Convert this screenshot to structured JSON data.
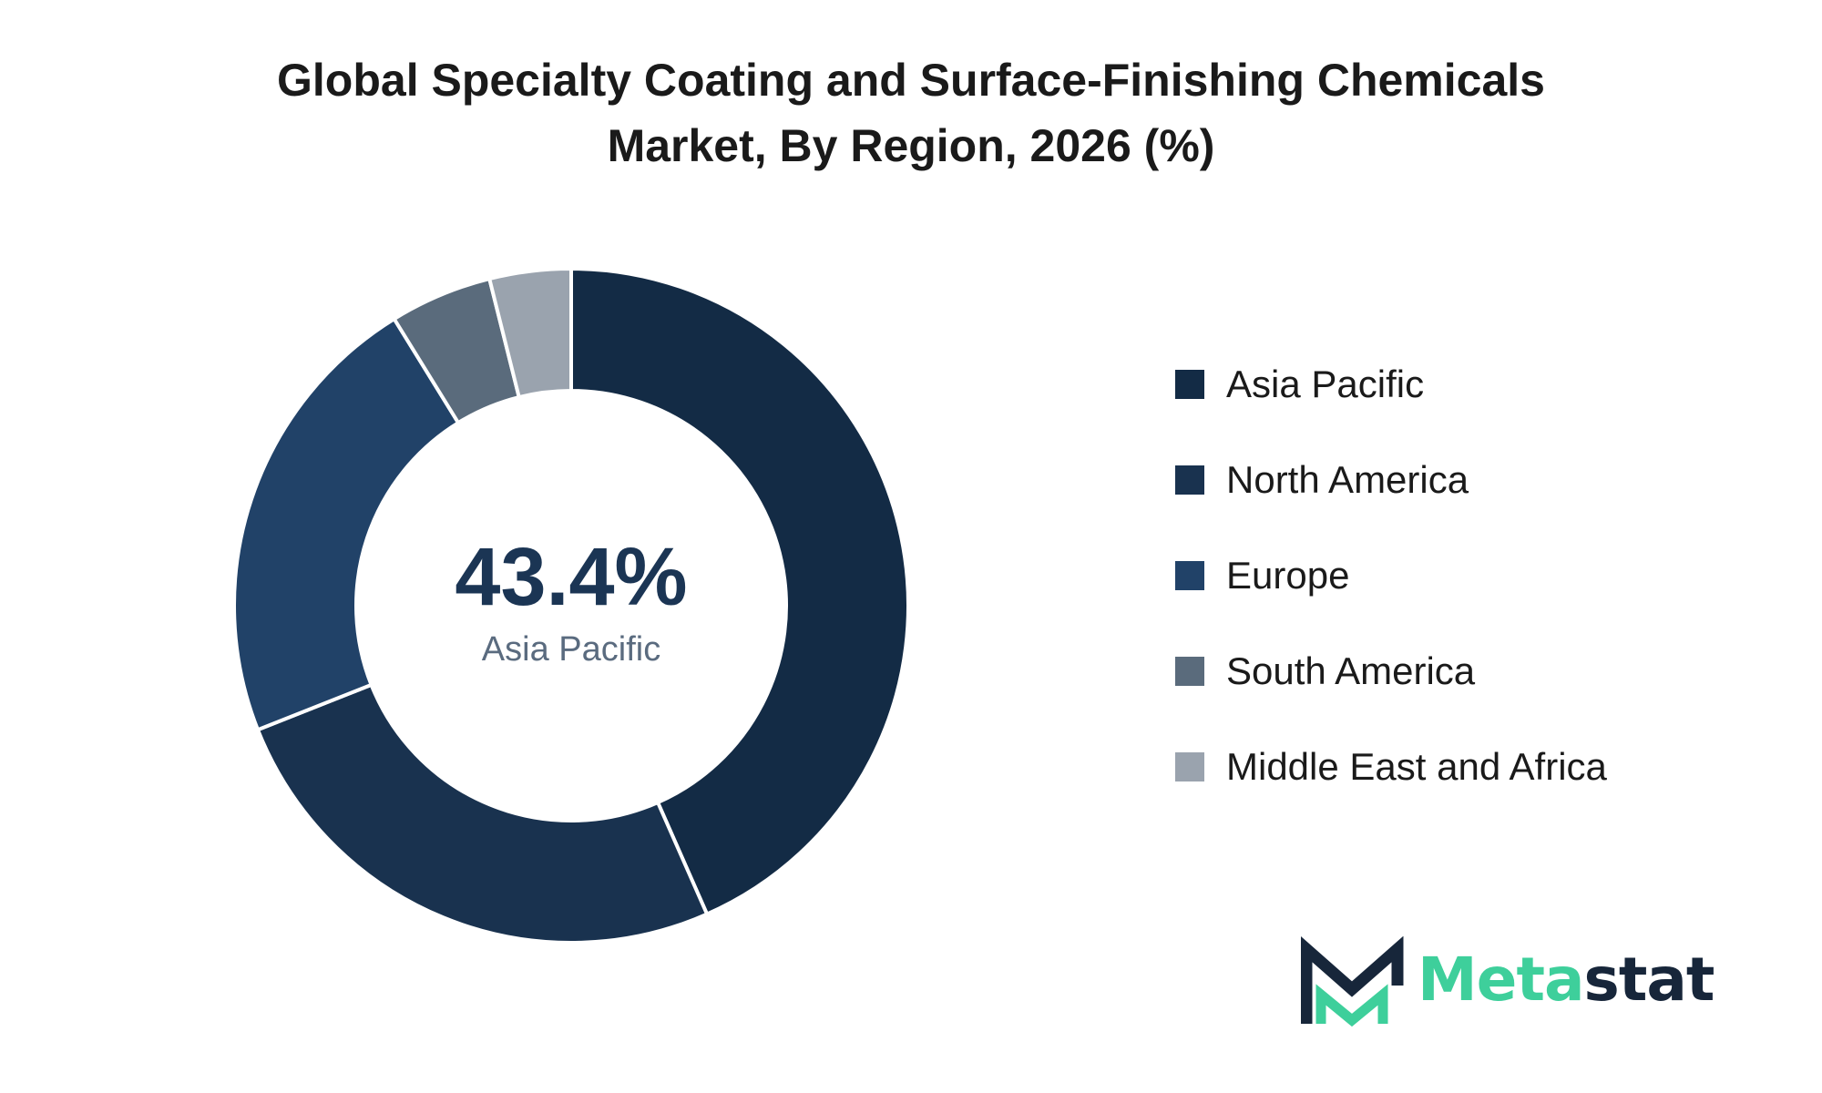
{
  "title": {
    "line1": "Global Specialty Coating and Surface-Finishing Chemicals",
    "line2": "Market, By Region, 2026 (%)"
  },
  "center": {
    "value": "43.4%",
    "label": "Asia Pacific"
  },
  "colors": {
    "asia_pacific": "#132b45",
    "north_america": "#19324f",
    "europe": "#214268",
    "south_america": "#5a6b7c",
    "middle_east_africa": "#9aa3ae",
    "center_value": "#1b3554",
    "center_label": "#5a6b7f",
    "logo_dark": "#17263a",
    "logo_green": "#3ecf9b"
  },
  "legend": [
    {
      "label": "Asia Pacific",
      "color": "#132b45"
    },
    {
      "label": "North America",
      "color": "#19324f"
    },
    {
      "label": "Europe",
      "color": "#214268"
    },
    {
      "label": "South America",
      "color": "#5a6b7c"
    },
    {
      "label": "Middle East and Africa",
      "color": "#9aa3ae"
    }
  ],
  "chart_data": {
    "type": "pie",
    "donut": true,
    "title": "Global Specialty Coating and Surface-Finishing Chemicals Market, By Region, 2026 (%)",
    "categories": [
      "Asia Pacific",
      "North America",
      "Europe",
      "South America",
      "Middle East and Africa"
    ],
    "values": [
      43.4,
      25.6,
      22.2,
      4.9,
      3.9
    ],
    "legend_position": "right"
  },
  "logo": {
    "part1": "Meta",
    "part2": "stat",
    "icon": "metastat-m-logo-icon"
  }
}
